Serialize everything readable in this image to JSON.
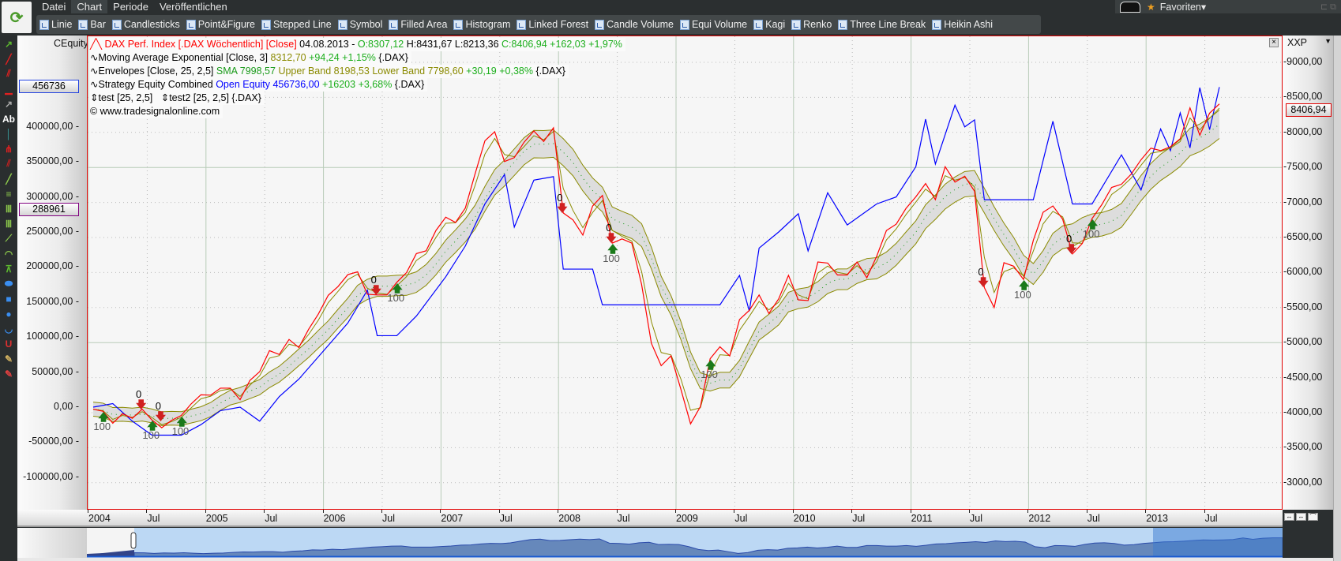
{
  "menu": [
    "Datei",
    "Chart",
    "Periode",
    "Veröffentlichen"
  ],
  "menu_active": "Chart",
  "toolbar": [
    "Linie",
    "Bar",
    "Candlesticks",
    "Point&Figure",
    "Stepped Line",
    "Symbol",
    "Filled Area",
    "Histogram",
    "Linked Forest",
    "Candle Volume",
    "Equi Volume",
    "Kagi",
    "Renko",
    "Three Line Break",
    "Heikin Ashi"
  ],
  "favorites": "Favoriten",
  "left_tools": [
    {
      "icon": "arrow-icon",
      "glyph": "↗",
      "color": "#5cb82e"
    },
    {
      "icon": "line-icon",
      "glyph": "╱",
      "color": "#e02020"
    },
    {
      "icon": "parallel-lines-icon",
      "glyph": "⫽",
      "color": "#e02020"
    },
    {
      "icon": "horizontal-line-icon",
      "glyph": "▁",
      "color": "#e02020"
    },
    {
      "icon": "pointer-icon",
      "glyph": "↗",
      "color": "#aaaaaa"
    },
    {
      "icon": "text-icon",
      "glyph": "Ab",
      "color": "#ffffff"
    },
    {
      "icon": "vertical-line-icon",
      "glyph": "│",
      "color": "#3aa0a0"
    },
    {
      "icon": "pitchfork-icon",
      "glyph": "⋔",
      "color": "#e02020"
    },
    {
      "icon": "channel-icon",
      "glyph": "⫽",
      "color": "#c02020"
    },
    {
      "icon": "gann-icon",
      "glyph": "╱",
      "color": "#8cc84b"
    },
    {
      "icon": "fibonacci-icon",
      "glyph": "≡",
      "color": "#8cc84b"
    },
    {
      "icon": "time-zones-icon",
      "glyph": "Ⅲ",
      "color": "#8cc84b"
    },
    {
      "icon": "cycle-lines-icon",
      "glyph": "Ⅲ",
      "color": "#8cc84b"
    },
    {
      "icon": "fan-icon",
      "glyph": "⟋",
      "color": "#8cc84b"
    },
    {
      "icon": "arcs-icon",
      "glyph": "◠",
      "color": "#8cc84b"
    },
    {
      "icon": "speed-lines-icon",
      "glyph": "⊼",
      "color": "#5cb82e"
    },
    {
      "icon": "ellipse-icon",
      "glyph": "⬬",
      "color": "#3a8ef0"
    },
    {
      "icon": "rectangle-icon",
      "glyph": "■",
      "color": "#3a8ef0"
    },
    {
      "icon": "circle-icon",
      "glyph": "●",
      "color": "#3a8ef0"
    },
    {
      "icon": "half-circle-icon",
      "glyph": "◡",
      "color": "#3a8ef0"
    },
    {
      "icon": "magnet-icon",
      "glyph": "U",
      "color": "#e03030"
    },
    {
      "icon": "pencil-refresh-icon",
      "glyph": "✎",
      "color": "#d0b060"
    },
    {
      "icon": "pencil-delete-icon",
      "glyph": "✎",
      "color": "#e04040"
    }
  ],
  "left_axis": {
    "title": "CEquity",
    "ticks": [
      "400000,00",
      "350000,00",
      "300000,00",
      "250000,00",
      "200000,00",
      "150000,00",
      "100000,00",
      "50000,00",
      "0,00",
      "-50000,00",
      "-100000,00"
    ],
    "tick_values": [
      400000,
      350000,
      300000,
      250000,
      200000,
      150000,
      100000,
      50000,
      0,
      -50000,
      -100000
    ],
    "current_label": "456736",
    "current_value": 456736,
    "marker_label": "288961",
    "marker_value": 288961
  },
  "right_axis": {
    "title": "XXP",
    "ticks": [
      "9000,00",
      "8500,00",
      "8000,00",
      "7500,00",
      "7000,00",
      "6500,00",
      "6000,00",
      "5500,00",
      "5000,00",
      "4500,00",
      "4000,00",
      "3500,00",
      "3000,00"
    ],
    "tick_values": [
      9000,
      8500,
      8000,
      7500,
      7000,
      6500,
      6000,
      5500,
      5000,
      4500,
      4000,
      3500,
      3000
    ],
    "current_label": "8406,94",
    "current_value": 8406.94
  },
  "x_axis": {
    "ticks": [
      {
        "label": "2004",
        "date": "2004-01"
      },
      {
        "label": "Jul",
        "date": "2004-07"
      },
      {
        "label": "2005",
        "date": "2005-01"
      },
      {
        "label": "Jul",
        "date": "2005-07"
      },
      {
        "label": "2006",
        "date": "2006-01"
      },
      {
        "label": "Jul",
        "date": "2006-07"
      },
      {
        "label": "2007",
        "date": "2007-01"
      },
      {
        "label": "Jul",
        "date": "2007-07"
      },
      {
        "label": "2008",
        "date": "2008-01"
      },
      {
        "label": "Jul",
        "date": "2008-07"
      },
      {
        "label": "2009",
        "date": "2009-01"
      },
      {
        "label": "Jul",
        "date": "2009-07"
      },
      {
        "label": "2010",
        "date": "2010-01"
      },
      {
        "label": "Jul",
        "date": "2010-07"
      },
      {
        "label": "2011",
        "date": "2011-01"
      },
      {
        "label": "Jul",
        "date": "2011-07"
      },
      {
        "label": "2012",
        "date": "2012-01"
      },
      {
        "label": "Jul",
        "date": "2012-07"
      },
      {
        "label": "2013",
        "date": "2013-01"
      },
      {
        "label": "Jul",
        "date": "2013-07"
      }
    ]
  },
  "legend": {
    "l1": {
      "name": "DAX Perf. Index [.DAX  Wöchentlich] [Close]",
      "date": "04.08.2013 -",
      "o": "O:8307,12",
      "h": "H:8431,67",
      "l": "L:8213,36",
      "c": "C:8406,94 +162,03 +1,97%"
    },
    "l2": {
      "name": "Moving Average Exponential [Close, 3]",
      "val": "8312,70",
      "chg": "+94,24 +1,15%",
      "sym": "{.DAX}"
    },
    "l3": {
      "name": "Envelopes [Close, 25, 2,5]",
      "sma": "SMA 7998,57",
      "upper": "Upper Band 8198,53",
      "lower": "Lower Band 7798,60",
      "chg": "+30,19 +0,38%",
      "sym": "{.DAX}"
    },
    "l4": {
      "name": "Strategy Equity Combined",
      "val": "Open Equity 456736,00",
      "chg": "+16203 +3,68%",
      "sym": "{.DAX}"
    },
    "l5": {
      "a": "test [25, 2,5]",
      "b": "test2 [25, 2,5] {.DAX}"
    },
    "copyright": "© www.tradesignalonline.com"
  },
  "colors": {
    "dax": "#ff0000",
    "ema": "#8a8a00",
    "envelope": "#8a8a00",
    "envelope_fill": "#d8d8d8",
    "equity": "#0000ff",
    "up": "#1a7a1a",
    "down": "#d02020",
    "grid": "#b8cbb8",
    "nav_fill": "#6688bb",
    "nav_sel": "#bcd8f4"
  },
  "chart_data": {
    "type": "line",
    "series": [
      {
        "name": "DAX Perf. Index",
        "axis": "right",
        "start": "2004-01",
        "interval": "month",
        "values": [
          4050,
          4020,
          3850,
          3985,
          3920,
          4050,
          3895,
          3785,
          3890,
          3960,
          4125,
          4255,
          4250,
          4350,
          4350,
          4185,
          4460,
          4585,
          4885,
          4830,
          5045,
          4930,
          5190,
          5410,
          5675,
          5800,
          5970,
          6010,
          5690,
          5680,
          5680,
          5860,
          6000,
          6270,
          6310,
          6600,
          6790,
          6715,
          6920,
          7410,
          7880,
          8010,
          7585,
          7640,
          7860,
          8020,
          7870,
          8065,
          6850,
          6750,
          6535,
          6950,
          7100,
          6420,
          6480,
          6420,
          5830,
          4990,
          4670,
          4810,
          4340,
          3840,
          4085,
          4770,
          4940,
          4810,
          5330,
          5460,
          5680,
          5415,
          5625,
          5960,
          5610,
          5600,
          6150,
          6135,
          5965,
          5965,
          6150,
          5925,
          6230,
          6600,
          6690,
          6915,
          7080,
          7270,
          7040,
          7510,
          7290,
          7375,
          7160,
          5785,
          5500,
          6140,
          6090,
          5900,
          6460,
          6860,
          6950,
          6760,
          6265,
          6415,
          6770,
          6970,
          7215,
          7260,
          7405,
          7610,
          7775,
          7740,
          7795,
          7910,
          8350,
          7960,
          8275,
          8406.94
        ]
      },
      {
        "name": "Strategy Equity Combined",
        "axis": "left",
        "points": [
          [
            "2004-01",
            0
          ],
          [
            "2004-03",
            5000
          ],
          [
            "2004-05",
            -20000
          ],
          [
            "2004-07",
            -40000
          ],
          [
            "2004-10",
            -40000
          ],
          [
            "2004-12",
            -25000
          ],
          [
            "2005-02",
            -5000
          ],
          [
            "2005-04",
            0
          ],
          [
            "2005-06",
            -20000
          ],
          [
            "2005-08",
            15000
          ],
          [
            "2005-10",
            40000
          ],
          [
            "2006-01",
            88000
          ],
          [
            "2006-03",
            120000
          ],
          [
            "2006-05",
            167000
          ],
          [
            "2006-06",
            102000
          ],
          [
            "2006-08",
            102000
          ],
          [
            "2006-10",
            130000
          ],
          [
            "2007-01",
            186000
          ],
          [
            "2007-03",
            230000
          ],
          [
            "2007-05",
            290000
          ],
          [
            "2007-07",
            332000
          ],
          [
            "2007-08",
            257000
          ],
          [
            "2007-10",
            324000
          ],
          [
            "2007-12",
            329000
          ],
          [
            "2008-01",
            197000
          ],
          [
            "2008-04",
            197000
          ],
          [
            "2008-05",
            146000
          ],
          [
            "2009-05",
            146000
          ],
          [
            "2009-07",
            188000
          ],
          [
            "2009-08",
            137000
          ],
          [
            "2009-09",
            227000
          ],
          [
            "2009-11",
            250000
          ],
          [
            "2010-01",
            276000
          ],
          [
            "2010-02",
            223000
          ],
          [
            "2010-04",
            306000
          ],
          [
            "2010-06",
            260000
          ],
          [
            "2010-09",
            290000
          ],
          [
            "2010-11",
            300000
          ],
          [
            "2011-01",
            343000
          ],
          [
            "2011-02",
            411000
          ],
          [
            "2011-03",
            347000
          ],
          [
            "2011-05",
            431000
          ],
          [
            "2011-06",
            400000
          ],
          [
            "2011-07",
            410000
          ],
          [
            "2011-08",
            296000
          ],
          [
            "2012-01",
            296000
          ],
          [
            "2012-03",
            408000
          ],
          [
            "2012-05",
            290000
          ],
          [
            "2012-07",
            290000
          ],
          [
            "2012-10",
            360000
          ],
          [
            "2012-12",
            310000
          ],
          [
            "2013-02",
            397000
          ],
          [
            "2013-03",
            366000
          ],
          [
            "2013-04",
            420000
          ],
          [
            "2013-05",
            370000
          ],
          [
            "2013-06",
            456000
          ],
          [
            "2013-07",
            396000
          ],
          [
            "2013-08",
            456736
          ]
        ]
      }
    ],
    "indicators": [
      "Moving Average Exponential [Close, 3]",
      "Envelopes [Close, 25, 2,5]"
    ],
    "right_ylim": [
      2700,
      9300
    ],
    "left_ylim": [
      -140000,
      460000
    ],
    "xlim": [
      "2004-01",
      "2013-10"
    ],
    "grid": true,
    "signals": [
      {
        "date": "2004-02",
        "type": "buy",
        "label": "100"
      },
      {
        "date": "2004-06",
        "type": "sell",
        "label": "0"
      },
      {
        "date": "2004-07",
        "type": "buy",
        "label": "100"
      },
      {
        "date": "2004-08",
        "type": "sell",
        "label": "0"
      },
      {
        "date": "2004-10",
        "type": "buy",
        "label": "100"
      },
      {
        "date": "2006-06",
        "type": "sell",
        "label": "0"
      },
      {
        "date": "2006-08",
        "type": "buy",
        "label": "100"
      },
      {
        "date": "2008-01",
        "type": "sell",
        "label": "0"
      },
      {
        "date": "2008-06",
        "type": "buy",
        "label": "100"
      },
      {
        "date": "2008-06",
        "type": "sell",
        "label": "0"
      },
      {
        "date": "2009-04",
        "type": "buy",
        "label": "100"
      },
      {
        "date": "2011-08",
        "type": "sell",
        "label": "0"
      },
      {
        "date": "2011-12",
        "type": "buy",
        "label": "100"
      },
      {
        "date": "2012-05",
        "type": "sell",
        "label": "0"
      },
      {
        "date": "2012-07",
        "type": "buy",
        "label": "100"
      }
    ]
  }
}
